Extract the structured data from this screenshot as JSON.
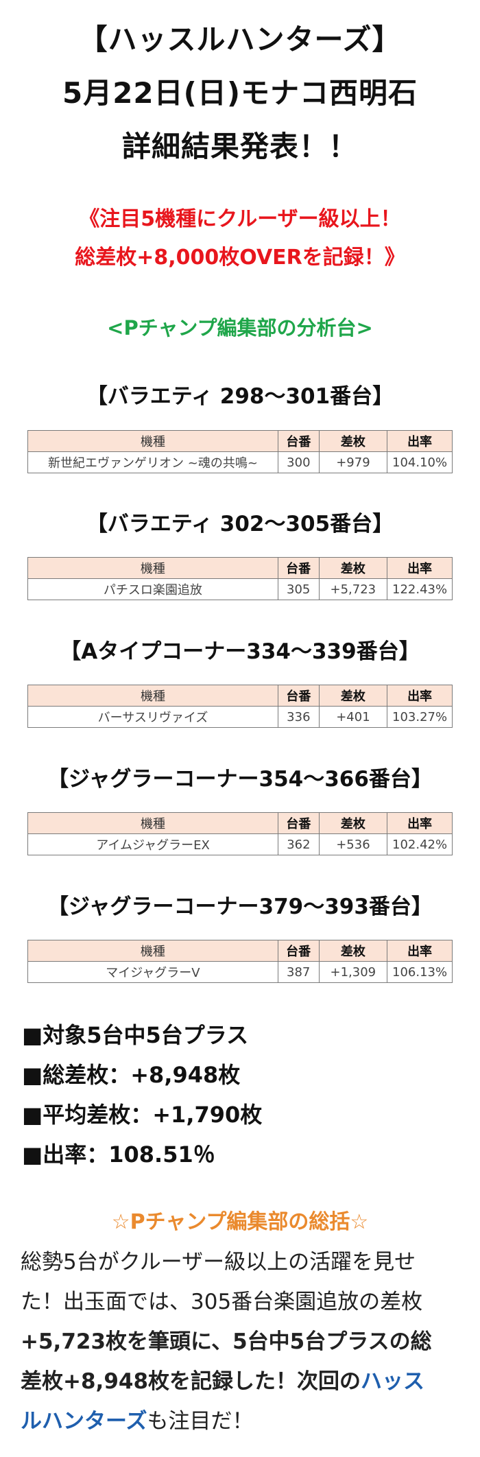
{
  "header": {
    "title_line1": "【ハッスルハンターズ】",
    "title_line2": "5月22日(日)モナコ西明石",
    "title_line3": "詳細結果発表！！"
  },
  "highlight": {
    "line1": "《注目5機種にクルーザー級以上！",
    "line2": "総差枚+8,000枚OVERを記録！》"
  },
  "analysis_heading": "<Pチャンプ編集部の分析台>",
  "table_headers": {
    "model": "機種",
    "unit_no": "台番",
    "diff": "差枚",
    "payout": "出率"
  },
  "sections": [
    {
      "heading": "【バラエティ 298〜301番台】",
      "row": {
        "model": "新世紀エヴァンゲリオン ~魂の共鳴~",
        "unit_no": "300",
        "diff": "+979",
        "payout": "104.10%"
      }
    },
    {
      "heading": "【バラエティ 302〜305番台】",
      "row": {
        "model": "パチスロ楽園追放",
        "unit_no": "305",
        "diff": "+5,723",
        "payout": "122.43%"
      }
    },
    {
      "heading": "【Aタイプコーナー334〜339番台】",
      "row": {
        "model": "バーサスリヴァイズ",
        "unit_no": "336",
        "diff": "+401",
        "payout": "103.27%"
      }
    },
    {
      "heading": "【ジャグラーコーナー354〜366番台】",
      "row": {
        "model": "アイムジャグラーEX",
        "unit_no": "362",
        "diff": "+536",
        "payout": "102.42%"
      }
    },
    {
      "heading": "【ジャグラーコーナー379〜393番台】",
      "row": {
        "model": "マイジャグラーV",
        "unit_no": "387",
        "diff": "+1,309",
        "payout": "106.13%"
      }
    }
  ],
  "stats": {
    "target": "■対象5台中5台プラス",
    "total_diff": "■総差枚：+8,948枚",
    "avg_diff": "■平均差枚：+1,790枚",
    "payout": "■出率：108.51％"
  },
  "summary": {
    "heading": "☆Pチャンプ編集部の総括☆",
    "line1": "総勢5台がクルーザー級以上の活躍を見せ",
    "line2": "た！出玉面では、305番台楽園追放の差枚",
    "line3": "+5,723枚を筆頭に、5台中5台プラスの総",
    "line4_a": "差枚+8,948枚を記録した！次回の",
    "line4_b": "ハッス",
    "line5_a": "ルハンターズ",
    "line5_b": "も注目だ！"
  },
  "colors": {
    "highlight_red": "#e8161d",
    "analysis_green": "#1fa64a",
    "summary_orange": "#ea8a2e",
    "link_blue": "#1f5fae",
    "table_header_bg": "#fbe3d6"
  }
}
